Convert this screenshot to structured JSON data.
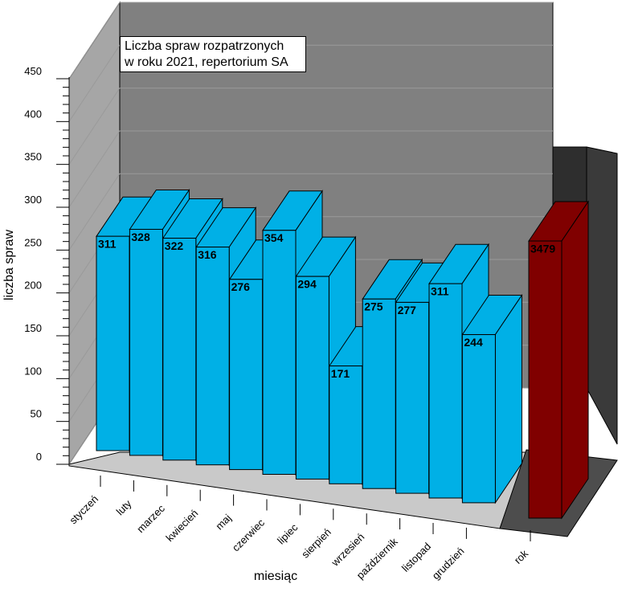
{
  "chart_data": {
    "type": "bar",
    "title_lines": [
      "Liczba spraw rozpatrzonych",
      "w roku 2021, repertorium SA"
    ],
    "xlabel": "miesiąc",
    "ylabel": "liczba spraw",
    "ylim": [
      0,
      450
    ],
    "yticks": [
      0,
      50,
      100,
      150,
      200,
      250,
      300,
      350,
      400,
      450
    ],
    "categories": [
      "styczeń",
      "luty",
      "marzec",
      "kwiecień",
      "maj",
      "czerwiec",
      "lipiec",
      "sierpień",
      "wrzesień",
      "październik",
      "listopad",
      "grudzień"
    ],
    "values": [
      311,
      328,
      322,
      316,
      276,
      354,
      294,
      171,
      275,
      277,
      311,
      244
    ],
    "total": {
      "category": "rok",
      "value": 3479
    },
    "colors": {
      "bar": "#00b0e6",
      "bar_dark": "#0095c4",
      "total_bar": "#800000",
      "total_bar_dark": "#5c0000",
      "back_wall": "#808080",
      "side_wall": "#a6a6a6",
      "floor": "#c9c9c9",
      "total_wall": "#333333",
      "total_floor": "#4d4d4d"
    },
    "grid": true
  }
}
